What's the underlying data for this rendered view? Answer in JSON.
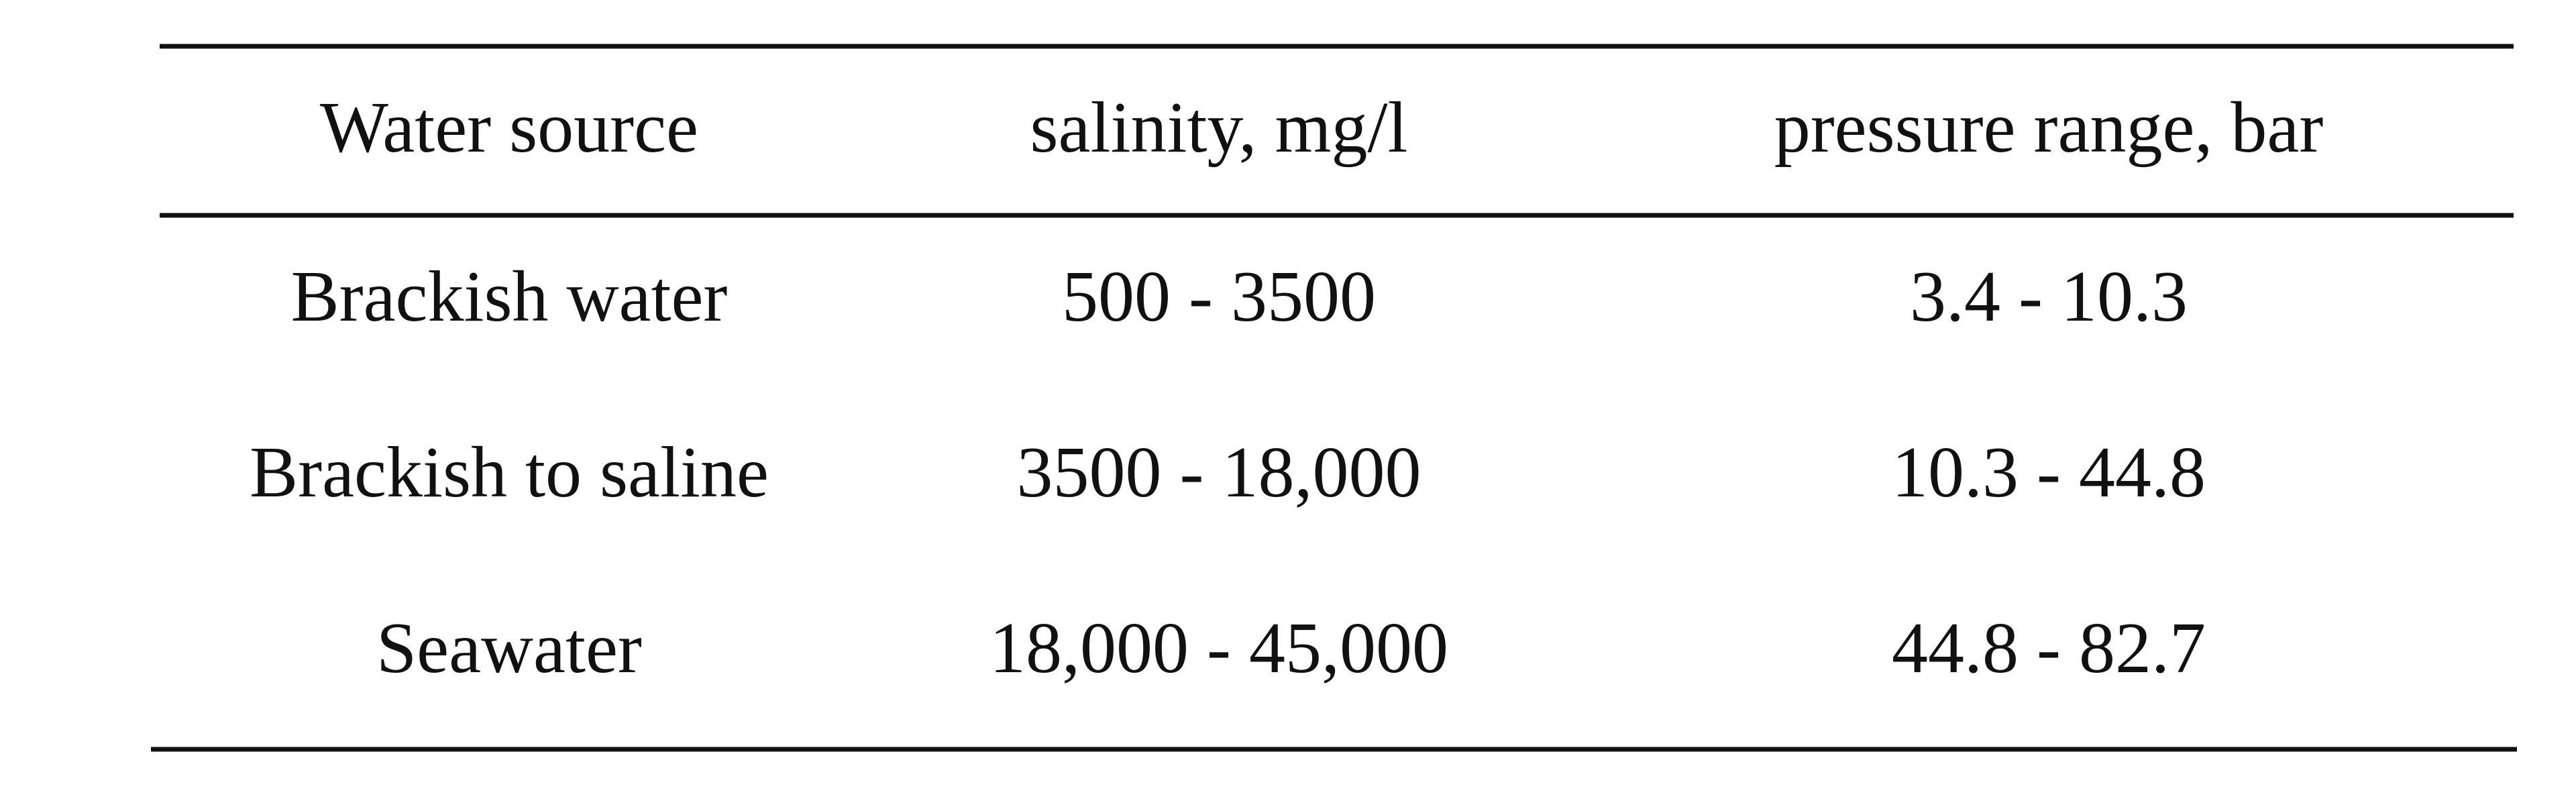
{
  "table": {
    "header": [
      "Water source",
      "salinity, mg/l",
      "pressure range, bar"
    ],
    "rows": [
      [
        "Brackish water",
        "500 - 3500",
        "3.4 - 10.3"
      ],
      [
        "Brackish to saline",
        "3500 - 18,000",
        "10.3 - 44.8"
      ],
      [
        "Seawater",
        "18,000 - 45,000",
        "44.8 - 82.7"
      ]
    ]
  }
}
